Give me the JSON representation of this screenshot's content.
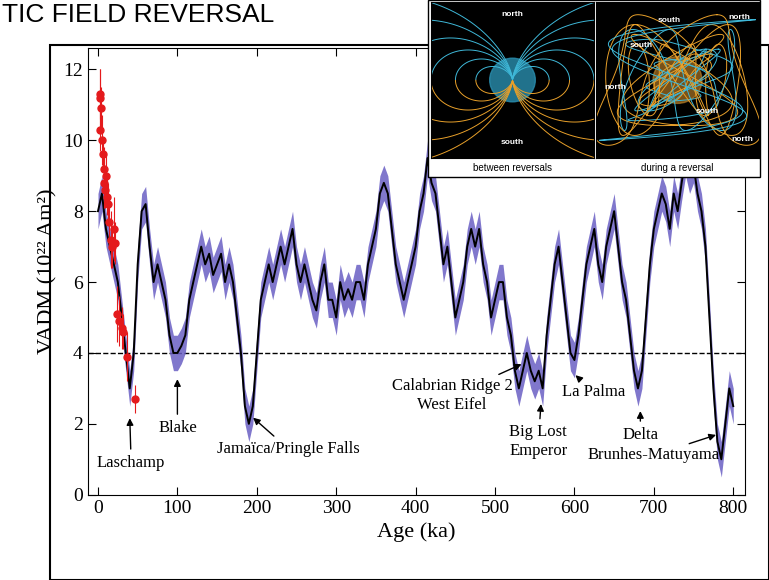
{
  "chart_data": {
    "type": "line",
    "title": "TIC FIELD REVERSAL",
    "x_label": "Age (ka)",
    "y_label": "VADM (10²² Am²)",
    "xlim": [
      -13,
      815
    ],
    "xticks": [
      0,
      100,
      200,
      300,
      400,
      500,
      600,
      700,
      800
    ],
    "ylim": [
      0,
      12.6
    ],
    "yticks": [
      0,
      2,
      4,
      6,
      8,
      10,
      12
    ],
    "reference_line": 4,
    "series": [
      {
        "type": "line",
        "color": "#000000",
        "error": 0.5,
        "x": [
          0,
          5,
          10,
          15,
          20,
          25,
          30,
          35,
          40,
          45,
          50,
          55,
          60,
          65,
          70,
          75,
          80,
          85,
          90,
          95,
          100,
          105,
          110,
          115,
          120,
          125,
          130,
          135,
          140,
          145,
          150,
          155,
          160,
          165,
          170,
          175,
          180,
          185,
          190,
          195,
          200,
          205,
          210,
          215,
          220,
          225,
          230,
          235,
          240,
          245,
          250,
          255,
          260,
          265,
          270,
          275,
          280,
          285,
          290,
          295,
          300,
          305,
          310,
          315,
          320,
          325,
          330,
          335,
          340,
          345,
          350,
          355,
          360,
          365,
          370,
          375,
          380,
          385,
          390,
          395,
          400,
          405,
          410,
          415,
          420,
          425,
          430,
          435,
          440,
          445,
          450,
          455,
          460,
          465,
          470,
          475,
          480,
          485,
          490,
          495,
          500,
          505,
          510,
          515,
          520,
          525,
          530,
          535,
          540,
          545,
          550,
          555,
          560,
          565,
          570,
          575,
          580,
          585,
          590,
          595,
          600,
          605,
          610,
          615,
          620,
          625,
          630,
          635,
          640,
          645,
          650,
          655,
          660,
          665,
          670,
          675,
          680,
          685,
          690,
          695,
          700,
          705,
          710,
          715,
          720,
          725,
          730,
          735,
          740,
          745,
          750,
          755,
          760,
          765,
          770,
          775,
          780,
          785,
          790,
          795,
          800
        ],
        "values": [
          8.0,
          8.5,
          7.5,
          7,
          6.5,
          6,
          5,
          4,
          3,
          4,
          6.5,
          8,
          8.2,
          7,
          6,
          6.5,
          6,
          5.5,
          4.5,
          4,
          4,
          4.2,
          4.5,
          5.5,
          6,
          6.5,
          7,
          6.5,
          6.8,
          6.2,
          6.5,
          6.8,
          6,
          6.5,
          6,
          5,
          4,
          2.5,
          2,
          2.5,
          4,
          5.5,
          6,
          6.5,
          6,
          6.5,
          7,
          6.5,
          7,
          7.5,
          6.5,
          6,
          6.5,
          6,
          5.5,
          5.2,
          6,
          6.5,
          5.5,
          5.5,
          5,
          6,
          5.5,
          5.8,
          5.5,
          6,
          6,
          5.5,
          6.5,
          7,
          7.5,
          8.5,
          8.8,
          8.5,
          7.5,
          6.5,
          6,
          5.5,
          6,
          6.5,
          7,
          8,
          8.5,
          9.5,
          8.8,
          8.5,
          7.5,
          6.5,
          7,
          6,
          5,
          5.5,
          6,
          7,
          7.5,
          7,
          7.5,
          6.5,
          6,
          5,
          5.5,
          6,
          6,
          5,
          4.5,
          3.5,
          3,
          3.5,
          4,
          3.5,
          3.2,
          3.5,
          3,
          4.5,
          5.5,
          6.5,
          7,
          6,
          5,
          4,
          3.8,
          4.5,
          5.5,
          6.5,
          7,
          7.5,
          6.5,
          6,
          7,
          7.5,
          8,
          7,
          6,
          5.5,
          4.5,
          3.5,
          3,
          3.5,
          5,
          6.5,
          7.5,
          8,
          8.5,
          8.2,
          7.5,
          8.5,
          8,
          8.8,
          9.5,
          9,
          9.3,
          8.5,
          8,
          7,
          5,
          3,
          1.5,
          1,
          2,
          3,
          2.5
        ]
      },
      {
        "type": "scatter",
        "color": "#e41a1c",
        "marker": "o",
        "x": [
          2,
          3,
          4,
          3,
          5,
          6,
          7,
          8,
          9,
          10,
          11,
          12,
          14,
          16,
          18,
          20,
          22,
          24,
          27,
          30,
          32,
          36,
          47
        ],
        "values": [
          11.2,
          11.3,
          10.9,
          10.3,
          10.0,
          9.6,
          9.2,
          8.8,
          8.6,
          9.0,
          8.4,
          8.2,
          7.7,
          7.2,
          7.0,
          7.5,
          7.1,
          5.1,
          4.9,
          4.7,
          4.6,
          3.9,
          2.7
        ],
        "error": [
          0.8,
          0.7,
          0.6,
          0.6,
          0.7,
          0.5,
          0.6,
          0.7,
          0.5,
          0.6,
          0.5,
          0.6,
          0.7,
          0.8,
          0.6,
          0.9,
          0.6,
          0.8,
          0.7,
          0.6,
          0.5,
          0.7,
          0.4
        ]
      }
    ],
    "annotations": [
      {
        "text": "Laschamp",
        "x": 40,
        "y": 2.2
      },
      {
        "text": "Blake",
        "x": 100,
        "y": 3.3
      },
      {
        "text": "Jamaïca/Pringle Falls",
        "x": 194,
        "y": 2.2
      },
      {
        "text": "Calabrian Ridge 2\nWest Eifel",
        "x": 535,
        "y": 3.7
      },
      {
        "text": "Big Lost\nEmperor",
        "x": 558,
        "y": 2.6
      },
      {
        "text": "La Palma",
        "x": 600,
        "y": 3.4
      },
      {
        "text": "Delta",
        "x": 683,
        "y": 2.4
      },
      {
        "text": "Brunhes-Matuyama",
        "x": 780,
        "y": 1.7
      }
    ],
    "inset": {
      "panels": [
        {
          "caption": "between reversals",
          "labels": [
            "north",
            "south"
          ]
        },
        {
          "caption": "during a reversal",
          "labels": [
            "south",
            "north",
            "south",
            "north",
            "south",
            "north"
          ]
        }
      ]
    }
  }
}
